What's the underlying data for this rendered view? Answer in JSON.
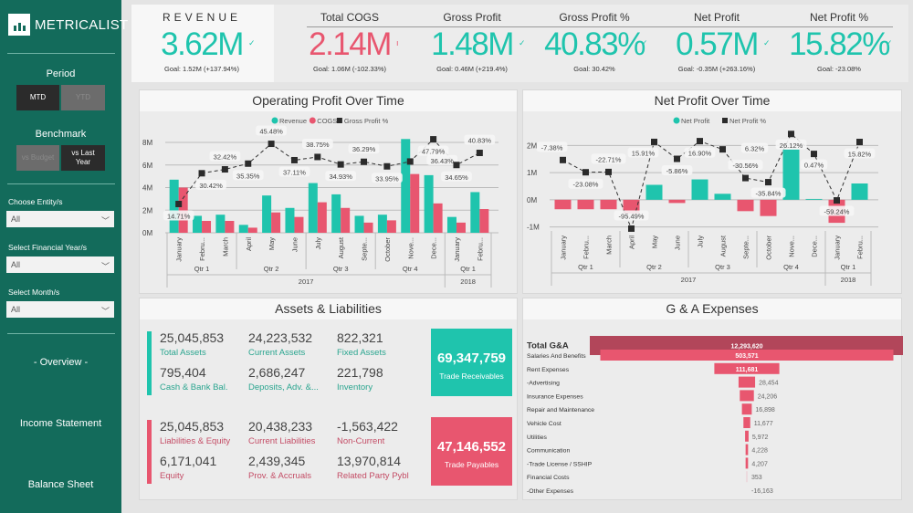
{
  "sidebar": {
    "brand": "METRICALIST",
    "period": {
      "label": "Period",
      "options": [
        "MTD",
        "YTD"
      ],
      "selected": "MTD"
    },
    "benchmark": {
      "label": "Benchmark",
      "options": [
        "vs Budget",
        "vs Last Year"
      ],
      "selected": "vs Last Year"
    },
    "filters": [
      {
        "label": "Choose Entity/s",
        "value": "All"
      },
      {
        "label": "Select Financial Year/s",
        "value": "All"
      },
      {
        "label": "Select Month/s",
        "value": "All"
      }
    ],
    "nav": [
      "- Overview -",
      "Income Statement",
      "Balance Sheet"
    ]
  },
  "kpis": [
    {
      "label": "REVENUE",
      "value": "3.62M",
      "goal": "Goal: 1.52M (+137.94%)",
      "color": "#1fc4ad"
    },
    {
      "label": "Total COGS",
      "value": "2.14M",
      "goal": "Goal: 1.06M (-102.33%)",
      "color": "#e8566f"
    },
    {
      "label": "Gross Profit",
      "value": "1.48M",
      "goal": "Goal: 0.46M (+219.4%)",
      "color": "#1fc4ad"
    },
    {
      "label": "Gross Profit %",
      "value": "40.83%",
      "goal": "Goal: 30.42%",
      "color": "#1fc4ad"
    },
    {
      "label": "Net Profit",
      "value": "0.57M",
      "goal": "Goal: -0.35M (+263.16%)",
      "color": "#1fc4ad"
    },
    {
      "label": "Net Profit %",
      "value": "15.82%",
      "goal": "Goal: -23.08%",
      "color": "#1fc4ad"
    }
  ],
  "colors": {
    "teal": "#1fc4ad",
    "pink": "#e8566f",
    "dark": "#2b2b2b",
    "sidebar": "#136b5b",
    "total_bar": "#b2465a"
  },
  "chart_data": [
    {
      "type": "bar+line",
      "title": "Operating Profit Over Time",
      "categories": [
        "January",
        "Febru...",
        "March",
        "April",
        "May",
        "June",
        "July",
        "August",
        "Septe...",
        "October",
        "Nove...",
        "Dece...",
        "January",
        "Febru..."
      ],
      "quarters": [
        {
          "label": "Qtr 1",
          "span": 3
        },
        {
          "label": "Qtr 2",
          "span": 3
        },
        {
          "label": "Qtr 3",
          "span": 3
        },
        {
          "label": "Qtr 4",
          "span": 3
        },
        {
          "label": "Qtr 1",
          "span": 2
        }
      ],
      "years": [
        {
          "label": "2017",
          "span": 12
        },
        {
          "label": "2018",
          "span": 2
        }
      ],
      "yticks": [
        "0M",
        "2M",
        "4M",
        "6M",
        "8M"
      ],
      "ylim": [
        0,
        8
      ],
      "y2lim": [
        0,
        46.2
      ],
      "legend": "top-center",
      "grid": true,
      "series": [
        {
          "name": "Revenue",
          "kind": "bar",
          "unit": "M",
          "values": [
            4.7,
            1.5,
            1.6,
            0.7,
            3.3,
            2.2,
            4.4,
            3.4,
            1.5,
            1.6,
            8.3,
            5.1,
            1.4,
            3.6
          ]
        },
        {
          "name": "COGS",
          "kind": "bar",
          "unit": "M",
          "values": [
            4.0,
            1.05,
            1.05,
            0.45,
            1.8,
            1.4,
            2.7,
            2.2,
            0.9,
            1.1,
            5.2,
            2.6,
            0.9,
            2.1
          ]
        },
        {
          "name": "Gross Profit %",
          "kind": "line",
          "values": [
            14.71,
            30.42,
            32.42,
            35.35,
            45.48,
            37.11,
            38.75,
            34.93,
            36.29,
            33.95,
            36.43,
            47.79,
            34.65,
            40.83
          ],
          "labels": [
            "14.71%",
            "30.42%",
            "32.42%",
            "35.35%",
            "45.48%",
            "37.11%",
            "38.75%",
            "34.93%",
            "36.29%",
            "33.95%",
            "36.43%",
            "47.79%",
            "34.65%",
            "40.83%"
          ]
        }
      ]
    },
    {
      "type": "bar+line",
      "title": "Net Profit Over Time",
      "categories": [
        "January",
        "Febru...",
        "March",
        "April",
        "May",
        "June",
        "July",
        "August",
        "Septe...",
        "October",
        "Nove...",
        "Dece...",
        "January",
        "Febru..."
      ],
      "quarters": [
        {
          "label": "Qtr 1",
          "span": 3
        },
        {
          "label": "Qtr 2",
          "span": 3
        },
        {
          "label": "Qtr 3",
          "span": 3
        },
        {
          "label": "Qtr 4",
          "span": 3
        },
        {
          "label": "Qtr 1",
          "span": 2
        }
      ],
      "years": [
        {
          "label": "2017",
          "span": 12
        },
        {
          "label": "2018",
          "span": 2
        }
      ],
      "yticks": [
        "-1M",
        "0M",
        "1M",
        "2M"
      ],
      "ylim": [
        -1.25,
        2.45
      ],
      "y2lim": [
        -102,
        27
      ],
      "legend": "top-center",
      "grid": true,
      "series": [
        {
          "name": "Net Profit",
          "kind": "bar",
          "unit": "M",
          "values": [
            -0.35,
            -0.35,
            -0.35,
            -0.5,
            0.55,
            -0.12,
            0.75,
            0.22,
            -0.42,
            -0.6,
            1.85,
            0.03,
            -0.85,
            0.6
          ]
        },
        {
          "name": "Net Profit %",
          "kind": "line",
          "values": [
            -7.38,
            -23.08,
            -22.71,
            -95.49,
            15.91,
            -5.86,
            16.9,
            6.32,
            -30.56,
            -35.84,
            26.12,
            0.47,
            -59.24,
            15.82
          ],
          "labels": [
            "-7.38%",
            "-23.08%",
            "-22.71%",
            "-95.49%",
            "15.91%",
            "-5.86%",
            "16.90%",
            "6.32%",
            "-30.56%",
            "-35.84%",
            "26.12%",
            "0.47%",
            "-59.24%",
            "15.82%"
          ]
        }
      ]
    },
    {
      "type": "funnel",
      "title": "G & A Expenses",
      "categories": [
        "Total G&A",
        "Salaries And Benefits",
        "Rent Expenses",
        "-Advertising",
        "Insurance Expenses",
        "Repair and Maintenance",
        "Vehicle Cost",
        "Utilities",
        "Communication",
        "-Trade License / SSHIP",
        "Financial Costs",
        "-Other Expenses"
      ],
      "values": [
        12293620,
        503571,
        111681,
        28454,
        24206,
        16898,
        11677,
        5972,
        4228,
        4207,
        353,
        -16163
      ],
      "labels": [
        "12,293,620",
        "503,571",
        "111,681",
        "28,454",
        "24,206",
        "16,898",
        "11,677",
        "5,972",
        "4,228",
        "4,207",
        "353",
        "-16,163"
      ]
    }
  ],
  "assets": {
    "title": "Assets & Liabilities",
    "assets_rows": [
      {
        "value": "25,045,853",
        "label": "Total Assets"
      },
      {
        "value": "24,223,532",
        "label": "Current Assets"
      },
      {
        "value": "822,321",
        "label": "Fixed Assets"
      },
      {
        "value": "795,404",
        "label": "Cash & Bank Bal."
      },
      {
        "value": "2,686,247",
        "label": "Deposits, Adv. &..."
      },
      {
        "value": "221,798",
        "label": "Inventory"
      }
    ],
    "liab_rows": [
      {
        "value": "25,045,853",
        "label": "Liabilities & Equity"
      },
      {
        "value": "20,438,233",
        "label": "Current Liabilities"
      },
      {
        "value": "-1,563,422",
        "label": "Non-Current"
      },
      {
        "value": "6,171,041",
        "label": "Equity"
      },
      {
        "value": "2,439,345",
        "label": "Prov. & Accruals"
      },
      {
        "value": "13,970,814",
        "label": "Related Party Pybl"
      }
    ],
    "receivables": {
      "value": "69,347,759",
      "label": "Trade Receivables"
    },
    "payables": {
      "value": "47,146,552",
      "label": "Trade Payables"
    }
  }
}
